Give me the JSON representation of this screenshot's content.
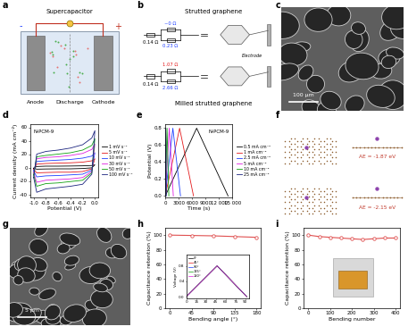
{
  "panel_labels": [
    "a",
    "b",
    "c",
    "d",
    "e",
    "f",
    "g",
    "h",
    "i"
  ],
  "schematic_a": {
    "title": "Supercapacitor",
    "terminals": [
      "-",
      "+"
    ],
    "electrodes": [
      "Anode",
      "Cathode"
    ],
    "process": "Discharge"
  },
  "diagram_b": {
    "top": {
      "title": "Strutted graphene",
      "series_resistance": "0.14 Ω",
      "upper_branch": "~0 Ω",
      "lower_branch": "0.23 Ω"
    },
    "bottom": {
      "title": "Milled strutted graphene",
      "series_resistance": "0.14 Ω",
      "upper_branch": "1.07 Ω",
      "lower_branch": "2.66 Ω"
    },
    "electrode": "Electrode"
  },
  "image_c": {
    "scale_bar": "100 μm"
  },
  "structures_f": {
    "energies": [
      "AE = -1.87 eV",
      "AE = -2.15 eV"
    ]
  },
  "image_g": {
    "scale_bar": "5 μm"
  },
  "chart_data": [
    {
      "type": "line",
      "annotation": "N-PCM-9",
      "x_label": "Potential (V)",
      "y_label": "Current density (mA cm⁻²)",
      "xlim": [
        -1.05,
        0.05
      ],
      "xticks": [
        -1.0,
        -0.8,
        -0.6,
        -0.4,
        -0.2,
        0.0
      ],
      "ylim": [
        -45,
        65
      ],
      "yticks": [
        -40,
        -20,
        0,
        20,
        40,
        60
      ],
      "legend": "right",
      "x": [
        -1.0,
        -0.95,
        -0.8,
        -0.6,
        -0.4,
        -0.2,
        -0.05,
        0.0,
        -0.05,
        -0.2,
        -0.4,
        -0.6,
        -0.8,
        -0.95,
        -1.0
      ],
      "series": [
        {
          "name": "1 mV s⁻¹",
          "color": "#000000",
          "values": [
            -1,
            1.5,
            2,
            2,
            2.2,
            2.5,
            3,
            4,
            -0.5,
            -1.5,
            -2,
            -2,
            -2.2,
            -2.5,
            -1
          ]
        },
        {
          "name": "5 mV s⁻¹",
          "color": "#e41a1c",
          "values": [
            -3,
            5,
            6,
            6.5,
            7,
            8,
            10,
            13,
            -2,
            -6,
            -7,
            -7,
            -7.5,
            -8,
            -3
          ]
        },
        {
          "name": "10 mV s⁻¹",
          "color": "#1f3fff",
          "values": [
            -5,
            9,
            10,
            11,
            12,
            14,
            17,
            22,
            -4,
            -10,
            -11,
            -12,
            -12.5,
            -14,
            -5
          ]
        },
        {
          "name": "30 mV s⁻¹",
          "color": "#e020e0",
          "values": [
            -8,
            13,
            15,
            16,
            18,
            21,
            27,
            35,
            -6,
            -15,
            -17,
            -18,
            -19,
            -22,
            -8
          ]
        },
        {
          "name": "50 mV s⁻¹",
          "color": "#10a010",
          "values": [
            -11,
            16,
            18,
            20,
            22,
            26,
            33,
            43,
            -8,
            -19,
            -21,
            -23,
            -24,
            -28,
            -11
          ]
        },
        {
          "name": "100 mV s⁻¹",
          "color": "#1a237e",
          "values": [
            -15,
            20,
            24,
            26,
            29,
            34,
            44,
            55,
            -10,
            -25,
            -28,
            -30,
            -32,
            -37,
            -15
          ]
        }
      ]
    },
    {
      "type": "line",
      "annotation": "N-PCM-9",
      "x_label": "Time (s)",
      "y_label": "Potential (V)",
      "xlim": [
        0,
        15000
      ],
      "xticks": [
        0,
        3000,
        6000,
        9000,
        {
          "value": 12000,
          "label": "12 000"
        },
        {
          "value": 15000,
          "label": "15 000"
        }
      ],
      "ylim": [
        -0.02,
        0.85
      ],
      "yticks": [
        0.0,
        0.2,
        0.4,
        0.6,
        0.8
      ],
      "legend": "right",
      "series": [
        {
          "name": "0.5 mA cm⁻²",
          "color": "#000000",
          "x": [
            0,
            7000,
            14000
          ],
          "values": [
            0,
            0.8,
            0
          ]
        },
        {
          "name": "1 mA cm⁻²",
          "color": "#e41a1c",
          "x": [
            0,
            3200,
            6300
          ],
          "values": [
            0,
            0.8,
            0
          ]
        },
        {
          "name": "2.5 mA cm⁻²",
          "color": "#1f3fff",
          "x": [
            0,
            1700,
            3400
          ],
          "values": [
            0,
            0.8,
            0
          ]
        },
        {
          "name": "5 mA cm⁻²",
          "color": "#e020e0",
          "x": [
            0,
            900,
            1800
          ],
          "values": [
            0,
            0.8,
            0
          ]
        },
        {
          "name": "10 mA cm⁻²",
          "color": "#10a010",
          "x": [
            0,
            400,
            800
          ],
          "values": [
            0,
            0.8,
            0
          ]
        },
        {
          "name": "25 mA cm⁻²",
          "color": "#1a237e",
          "x": [
            0,
            120,
            240
          ],
          "values": [
            0,
            0.8,
            0
          ]
        }
      ]
    },
    {
      "type": "line",
      "x_label": "Bending angle (°)",
      "y_label": "Capacitance retention (%)",
      "marker": "circle",
      "color": "#e05050",
      "x": [
        0,
        45,
        90,
        135,
        180
      ],
      "values": [
        100,
        99.5,
        99,
        98,
        97
      ],
      "xlim": [
        -10,
        190
      ],
      "xticks": [
        0,
        45,
        90,
        135,
        180
      ],
      "ylim": [
        0,
        110
      ],
      "yticks": [
        0,
        20,
        40,
        60,
        80,
        100
      ],
      "inset": {
        "type": "line",
        "y_label": "Voltage (V)",
        "xlim": [
          0,
          95
        ],
        "xticks": [
          0,
          15,
          30,
          45,
          60,
          75,
          90
        ],
        "ylim": [
          -0.05,
          1.1
        ],
        "yticks": [
          0.0,
          0.4,
          0.8
        ],
        "legend": "upper left",
        "x": [
          0,
          47,
          92
        ],
        "series": [
          {
            "name": "0°",
            "color": "#000000",
            "values": [
              0,
              0.8,
              0
            ]
          },
          {
            "name": "45°",
            "color": "#e41a1c",
            "values": [
              0,
              0.8,
              0
            ]
          },
          {
            "name": "90°",
            "color": "#1f3fff",
            "values": [
              0,
              0.8,
              0
            ]
          },
          {
            "name": "135°",
            "color": "#10a010",
            "values": [
              0,
              0.8,
              0
            ]
          },
          {
            "name": "180°",
            "color": "#e020e0",
            "values": [
              0,
              0.8,
              0
            ]
          }
        ]
      }
    },
    {
      "type": "line",
      "x_label": "Bending number",
      "y_label": "Capacitance retention (%)",
      "marker": "circle",
      "color": "#e05050",
      "x": [
        0,
        50,
        100,
        150,
        200,
        250,
        300,
        350,
        400
      ],
      "values": [
        100,
        98,
        97,
        96,
        95,
        94,
        95,
        96,
        96
      ],
      "xlim": [
        -20,
        420
      ],
      "xticks": [
        0,
        100,
        200,
        300,
        400
      ],
      "ylim": [
        0,
        110
      ],
      "yticks": [
        0,
        20,
        40,
        60,
        80,
        100
      ]
    }
  ]
}
